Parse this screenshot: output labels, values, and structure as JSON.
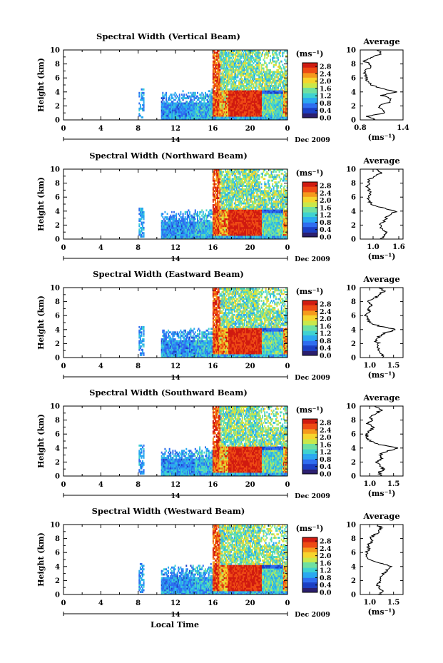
{
  "colorbar": {
    "unit_label": "(ms⁻¹)",
    "ticks": [
      "0.0",
      "0.4",
      "0.8",
      "1.2",
      "1.6",
      "2.0",
      "2.4",
      "2.8"
    ],
    "tick_values": [
      0.0,
      0.4,
      0.8,
      1.2,
      1.6,
      2.0,
      2.4,
      2.8
    ],
    "range": [
      0.0,
      3.0
    ],
    "colors": [
      "#2b1e6e",
      "#1b3fc4",
      "#2f6df0",
      "#2aa8f0",
      "#3fd2d0",
      "#6fe0a0",
      "#c9e84a",
      "#f6d42c",
      "#f59a1c",
      "#ee4a14",
      "#d01a10"
    ]
  },
  "x_axis": {
    "ticks": [
      "0",
      "4",
      "8",
      "12",
      "16",
      "20",
      "0"
    ],
    "tick_values": [
      0,
      4,
      8,
      12,
      16,
      20,
      24
    ],
    "range": [
      0,
      24
    ],
    "day_label": "14",
    "date_label": "Dec 2009",
    "label": "Local Time"
  },
  "y_axis": {
    "label": "Height (km)",
    "ticks": [
      "0",
      "2",
      "4",
      "6",
      "8",
      "10"
    ],
    "range": [
      0,
      10
    ]
  },
  "average_title": "Average",
  "average_unit": "(ms⁻¹)",
  "chart_data": [
    {
      "type": "heatmap",
      "title": "Spectral Width (Vertical Beam)",
      "avg_ticks": [
        "0.8",
        "1.4"
      ],
      "avg_tick_values": [
        0.8,
        1.4
      ],
      "avg_xlim": [
        0.8,
        1.4
      ],
      "avg_profile": {
        "h": [
          0,
          0.5,
          1,
          1.5,
          2,
          2.5,
          3,
          3.5,
          4,
          4.5,
          5,
          5.5,
          6,
          6.5,
          7,
          7.5,
          8,
          8.5,
          9,
          9.5,
          10
        ],
        "w": [
          1.0,
          0.9,
          1.15,
          1.1,
          1.05,
          1.2,
          1.25,
          1.1,
          1.3,
          1.1,
          0.95,
          0.9,
          0.88,
          0.87,
          0.85,
          0.95,
          0.92,
          0.85,
          0.98,
          1.1,
          1.05
        ]
      }
    },
    {
      "type": "heatmap",
      "title": "Spectral Width (Northward Beam)",
      "avg_ticks": [
        "1.0",
        "1.6"
      ],
      "avg_tick_values": [
        1.0,
        1.6
      ],
      "avg_xlim": [
        0.7,
        1.7
      ],
      "avg_profile": {
        "h": [
          0,
          0.5,
          1,
          1.5,
          2,
          2.5,
          3,
          3.5,
          4,
          4.5,
          5,
          5.5,
          6,
          6.5,
          7,
          7.5,
          8,
          8.5,
          9,
          9.5,
          10
        ],
        "w": [
          1.2,
          1.25,
          1.3,
          1.2,
          1.15,
          1.25,
          1.3,
          1.4,
          1.55,
          1.2,
          0.95,
          0.9,
          0.88,
          0.95,
          0.9,
          0.85,
          0.92,
          0.88,
          1.05,
          1.2,
          1.1
        ]
      }
    },
    {
      "type": "heatmap",
      "title": "Spectral Width (Eastward Beam)",
      "avg_ticks": [
        "1.0",
        "1.5"
      ],
      "avg_tick_values": [
        1.0,
        1.5
      ],
      "avg_xlim": [
        0.8,
        1.7
      ],
      "avg_profile": {
        "h": [
          0,
          0.5,
          1,
          1.5,
          2,
          2.5,
          3,
          3.5,
          4,
          4.5,
          5,
          5.5,
          6,
          6.5,
          7,
          7.5,
          8,
          8.5,
          9,
          9.5,
          10
        ],
        "w": [
          1.3,
          1.25,
          1.2,
          1.15,
          1.2,
          1.1,
          1.2,
          1.3,
          1.55,
          1.2,
          1.0,
          0.95,
          0.92,
          1.0,
          0.95,
          1.05,
          0.95,
          1.1,
          1.2,
          1.3,
          1.2
        ]
      }
    },
    {
      "type": "heatmap",
      "title": "Spectral Width (Southward Beam)",
      "avg_ticks": [
        "1.0",
        "1.5"
      ],
      "avg_tick_values": [
        1.0,
        1.5
      ],
      "avg_xlim": [
        0.8,
        1.7
      ],
      "avg_profile": {
        "h": [
          0,
          0.5,
          1,
          1.5,
          2,
          2.5,
          3,
          3.5,
          4,
          4.5,
          5,
          5.5,
          6,
          6.5,
          7,
          7.5,
          8,
          8.5,
          9,
          9.5,
          10
        ],
        "w": [
          1.25,
          1.2,
          1.3,
          1.2,
          1.15,
          1.25,
          1.2,
          1.35,
          1.6,
          1.2,
          1.0,
          0.95,
          0.92,
          1.0,
          1.1,
          0.95,
          1.05,
          1.0,
          1.15,
          1.25,
          1.1
        ]
      }
    },
    {
      "type": "heatmap",
      "title": "Spectral Width (Westward Beam)",
      "avg_ticks": [
        "1.0",
        "1.5"
      ],
      "avg_tick_values": [
        1.0,
        1.5
      ],
      "avg_xlim": [
        0.8,
        1.7
      ],
      "avg_profile": {
        "h": [
          0,
          0.5,
          1,
          1.5,
          2,
          2.5,
          3,
          3.5,
          4,
          4.5,
          5,
          5.5,
          6,
          6.5,
          7,
          7.5,
          8,
          8.5,
          9,
          9.5,
          10
        ],
        "w": [
          1.2,
          1.25,
          1.2,
          1.15,
          1.25,
          1.2,
          1.3,
          1.35,
          1.45,
          1.2,
          1.0,
          0.95,
          0.92,
          0.98,
          0.95,
          1.05,
          1.0,
          1.1,
          1.2,
          1.25,
          1.15
        ]
      }
    }
  ]
}
